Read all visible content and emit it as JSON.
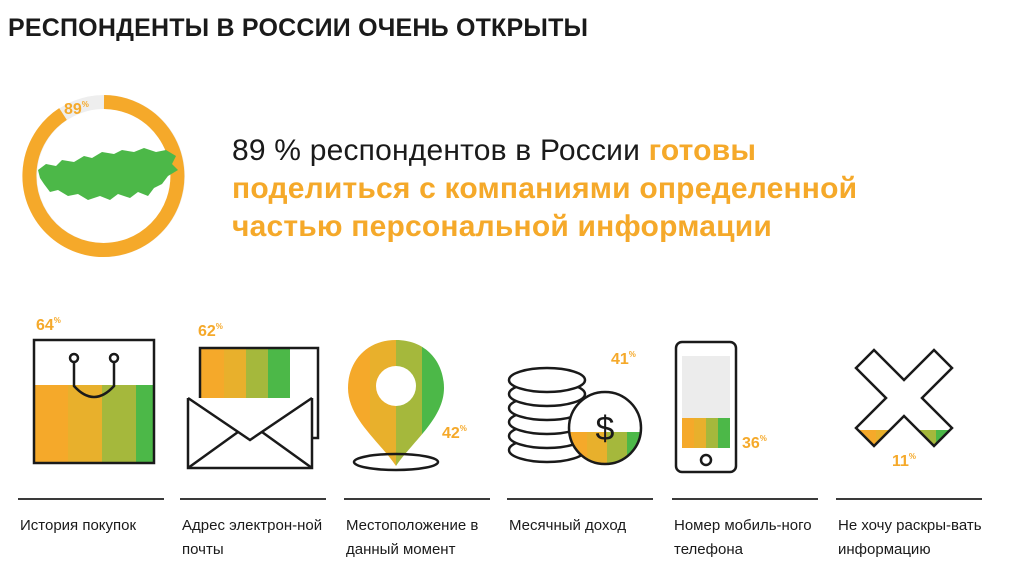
{
  "title": "РЕСПОНДЕНТЫ В РОССИИ ОЧЕНЬ ОТКРЫТЫ",
  "hero": {
    "percent": "89",
    "percent_sign": "%",
    "text_plain": "89 % респондентов в России ",
    "text_accent_1": "готовы",
    "text_accent_2": "поделиться с компаниями определенной",
    "text_accent_3": "частью персональной информации"
  },
  "items": [
    {
      "percent": "64",
      "sign": "%",
      "label": "История покупок",
      "icon": "shopping-bag-icon"
    },
    {
      "percent": "62",
      "sign": "%",
      "label": "Адрес электрон-ной почты",
      "icon": "envelope-icon"
    },
    {
      "percent": "42",
      "sign": "%",
      "label": "Местоположение в данный момент",
      "icon": "map-pin-icon"
    },
    {
      "percent": "41",
      "sign": "%",
      "label": "Месячный доход",
      "icon": "coins-icon"
    },
    {
      "percent": "36",
      "sign": "%",
      "label": "Номер мобиль-ного телефона",
      "icon": "mobile-phone-icon"
    },
    {
      "percent": "11",
      "sign": "%",
      "label": "Не хочу раскры-вать информацию",
      "icon": "cross-icon"
    }
  ],
  "colors": {
    "orange": "#f5a92a",
    "olive": "#a5b83c",
    "green": "#4cb848",
    "outline": "#1a1a1a"
  }
}
